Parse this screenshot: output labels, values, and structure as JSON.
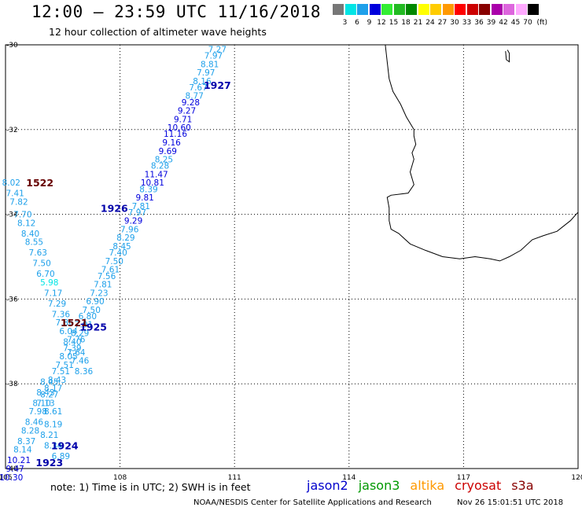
{
  "title": "12:00 – 23:59 UTC 11/16/2018",
  "subtitle": "12 hour collection of altimeter wave heights",
  "legend": {
    "unit": "(ft)",
    "bins": [
      {
        "label": "3",
        "color": "#777777"
      },
      {
        "label": "6",
        "color": "#00e5e5"
      },
      {
        "label": "9",
        "color": "#1ea0ea"
      },
      {
        "label": "12",
        "color": "#0000dd"
      },
      {
        "label": "15",
        "color": "#33ee33"
      },
      {
        "label": "18",
        "color": "#22bb22"
      },
      {
        "label": "21",
        "color": "#008800"
      },
      {
        "label": "24",
        "color": "#ffff00"
      },
      {
        "label": "27",
        "color": "#ffcc00"
      },
      {
        "label": "30",
        "color": "#ff9900"
      },
      {
        "label": "33",
        "color": "#ff0000"
      },
      {
        "label": "36",
        "color": "#cc0000"
      },
      {
        "label": "39",
        "color": "#880000"
      },
      {
        "label": "42",
        "color": "#aa00aa"
      },
      {
        "label": "45",
        "color": "#dd66dd"
      },
      {
        "label": "70",
        "color": "#ffaaff"
      },
      {
        "label": "",
        "color": "#000000"
      }
    ]
  },
  "map": {
    "lon_ticks": [
      "105",
      "108",
      "111",
      "114",
      "117",
      "120"
    ],
    "lat_ticks": [
      "-30",
      "-32",
      "-34",
      "-36",
      "-38",
      "-40"
    ],
    "pass_labels": [
      {
        "text": "1927",
        "lon": 110.55,
        "lat": -30.95,
        "color": "#0000aa"
      },
      {
        "text": "1926",
        "lon": 107.85,
        "lat": -33.85,
        "color": "#0000aa"
      },
      {
        "text": "1925",
        "lon": 107.3,
        "lat": -36.65,
        "color": "#0000aa"
      },
      {
        "text": "1924",
        "lon": 106.55,
        "lat": -39.45,
        "color": "#0000aa"
      },
      {
        "text": "1923",
        "lon": 106.15,
        "lat": -39.85,
        "color": "#0000aa"
      },
      {
        "text": "1522",
        "lon": 105.9,
        "lat": -33.25,
        "color": "#660000"
      },
      {
        "text": "1521",
        "lon": 106.8,
        "lat": -36.55,
        "color": "#660000"
      }
    ],
    "swh_labels": [
      {
        "v": "7.27",
        "lon": 110.55,
        "lat": -30.1
      },
      {
        "v": "7.97",
        "lon": 110.45,
        "lat": -30.25
      },
      {
        "v": "8.81",
        "lon": 110.35,
        "lat": -30.45
      },
      {
        "v": "7.97",
        "lon": 110.25,
        "lat": -30.65
      },
      {
        "v": "8.16",
        "lon": 110.15,
        "lat": -30.85
      },
      {
        "v": "7.67",
        "lon": 110.05,
        "lat": -31.0
      },
      {
        "v": "8.77",
        "lon": 109.95,
        "lat": -31.2
      },
      {
        "v": "9.28",
        "lon": 109.85,
        "lat": -31.35
      },
      {
        "v": "9.27",
        "lon": 109.75,
        "lat": -31.55
      },
      {
        "v": "9.71",
        "lon": 109.65,
        "lat": -31.75
      },
      {
        "v": "10.60",
        "lon": 109.55,
        "lat": -31.95
      },
      {
        "v": "11.16",
        "lon": 109.45,
        "lat": -32.1
      },
      {
        "v": "9.16",
        "lon": 109.35,
        "lat": -32.3
      },
      {
        "v": "9.69",
        "lon": 109.25,
        "lat": -32.5
      },
      {
        "v": "8.25",
        "lon": 109.15,
        "lat": -32.7
      },
      {
        "v": "8.28",
        "lon": 109.05,
        "lat": -32.85
      },
      {
        "v": "11.47",
        "lon": 108.95,
        "lat": -33.05
      },
      {
        "v": "10.81",
        "lon": 108.85,
        "lat": -33.25
      },
      {
        "v": "8.39",
        "lon": 108.75,
        "lat": -33.4
      },
      {
        "v": "9.81",
        "lon": 108.65,
        "lat": -33.6
      },
      {
        "v": "7.81",
        "lon": 108.55,
        "lat": -33.8
      },
      {
        "v": "7.97",
        "lon": 108.45,
        "lat": -33.95
      },
      {
        "v": "9.29",
        "lon": 108.35,
        "lat": -34.15
      },
      {
        "v": "7.96",
        "lon": 108.25,
        "lat": -34.35
      },
      {
        "v": "8.29",
        "lon": 108.15,
        "lat": -34.55
      },
      {
        "v": "8.45",
        "lon": 108.05,
        "lat": -34.75
      },
      {
        "v": "7.40",
        "lon": 107.95,
        "lat": -34.9
      },
      {
        "v": "7.50",
        "lon": 107.85,
        "lat": -35.1
      },
      {
        "v": "7.61",
        "lon": 107.75,
        "lat": -35.3
      },
      {
        "v": "7.56",
        "lon": 107.65,
        "lat": -35.45
      },
      {
        "v": "7.81",
        "lon": 107.55,
        "lat": -35.65
      },
      {
        "v": "7.23",
        "lon": 107.45,
        "lat": -35.85
      },
      {
        "v": "6.90",
        "lon": 107.35,
        "lat": -36.05
      },
      {
        "v": "7.50",
        "lon": 107.25,
        "lat": -36.25
      },
      {
        "v": "6.80",
        "lon": 107.15,
        "lat": -36.4
      },
      {
        "v": "7.91",
        "lon": 107.05,
        "lat": -36.6
      },
      {
        "v": "8.29",
        "lon": 106.95,
        "lat": -36.8
      },
      {
        "v": "7.76",
        "lon": 106.85,
        "lat": -36.95
      },
      {
        "v": "7.39",
        "lon": 106.75,
        "lat": -37.15
      },
      {
        "v": "8.05",
        "lon": 106.65,
        "lat": -37.35
      },
      {
        "v": "7.51",
        "lon": 106.55,
        "lat": -37.55
      },
      {
        "v": "7.51",
        "lon": 106.45,
        "lat": -37.7
      },
      {
        "v": "8.43",
        "lon": 106.35,
        "lat": -37.9
      },
      {
        "v": "8.17",
        "lon": 106.25,
        "lat": -38.1
      },
      {
        "v": "8.27",
        "lon": 106.15,
        "lat": -38.25
      },
      {
        "v": "7.13",
        "lon": 106.05,
        "lat": -38.45
      },
      {
        "v": "8.61",
        "lon": 106.25,
        "lat": -38.65
      },
      {
        "v": "8.19",
        "lon": 106.25,
        "lat": -38.95
      },
      {
        "v": "8.21",
        "lon": 106.15,
        "lat": -39.2
      },
      {
        "v": "8.34",
        "lon": 106.25,
        "lat": -39.45
      },
      {
        "v": "6.89",
        "lon": 106.45,
        "lat": -39.7
      },
      {
        "v": "8.02",
        "lon": 105.15,
        "lat": -33.25
      },
      {
        "v": "7.41",
        "lon": 105.25,
        "lat": -33.5
      },
      {
        "v": "7.82",
        "lon": 105.35,
        "lat": -33.7
      },
      {
        "v": "7.70",
        "lon": 105.45,
        "lat": -34.0
      },
      {
        "v": "8.12",
        "lon": 105.55,
        "lat": -34.2
      },
      {
        "v": "8.40",
        "lon": 105.65,
        "lat": -34.45
      },
      {
        "v": "8.55",
        "lon": 105.75,
        "lat": -34.65
      },
      {
        "v": "7.63",
        "lon": 105.85,
        "lat": -34.9
      },
      {
        "v": "7.50",
        "lon": 105.95,
        "lat": -35.15
      },
      {
        "v": "6.70",
        "lon": 106.05,
        "lat": -35.4
      },
      {
        "v": "5.98",
        "lon": 106.15,
        "lat": -35.6
      },
      {
        "v": "7.17",
        "lon": 106.25,
        "lat": -35.85
      },
      {
        "v": "7.29",
        "lon": 106.35,
        "lat": -36.1
      },
      {
        "v": "7.36",
        "lon": 106.45,
        "lat": -36.35
      },
      {
        "v": "7.86",
        "lon": 106.55,
        "lat": -36.55
      },
      {
        "v": "6.04",
        "lon": 106.65,
        "lat": -36.75
      },
      {
        "v": "8.40",
        "lon": 106.75,
        "lat": -37.0
      },
      {
        "v": "7.64",
        "lon": 106.85,
        "lat": -37.25
      },
      {
        "v": "7.46",
        "lon": 106.95,
        "lat": -37.45
      },
      {
        "v": "8.36",
        "lon": 107.05,
        "lat": -37.7
      },
      {
        "v": "8.45",
        "lon": 106.15,
        "lat": -37.95
      },
      {
        "v": "8.43",
        "lon": 106.05,
        "lat": -38.2
      },
      {
        "v": "8.10",
        "lon": 105.95,
        "lat": -38.45
      },
      {
        "v": "7.98",
        "lon": 105.85,
        "lat": -38.65
      },
      {
        "v": "8.46",
        "lon": 105.75,
        "lat": -38.9
      },
      {
        "v": "8.28",
        "lon": 105.65,
        "lat": -39.1
      },
      {
        "v": "8.37",
        "lon": 105.55,
        "lat": -39.35
      },
      {
        "v": "8.14",
        "lon": 105.45,
        "lat": -39.55
      },
      {
        "v": "10.21",
        "lon": 105.35,
        "lat": -39.8
      },
      {
        "v": "9.47",
        "lon": 105.25,
        "lat": -40.0
      },
      {
        "v": "10.30",
        "lon": 105.15,
        "lat": -40.2
      }
    ]
  },
  "note": "note:  1) Time is in UTC;  2) SWH is in feet",
  "satellites": [
    {
      "name": "jason2",
      "color": "#0000cc"
    },
    {
      "name": "jason3",
      "color": "#009900"
    },
    {
      "name": "altika",
      "color": "#ff9900"
    },
    {
      "name": "cryosat",
      "color": "#cc0000"
    },
    {
      "name": "s3a",
      "color": "#880000"
    }
  ],
  "footer_left": "NOAA/NESDIS Center for Satellite Applications and Research",
  "footer_right": "Nov 26 15:01:51 UTC 2018"
}
